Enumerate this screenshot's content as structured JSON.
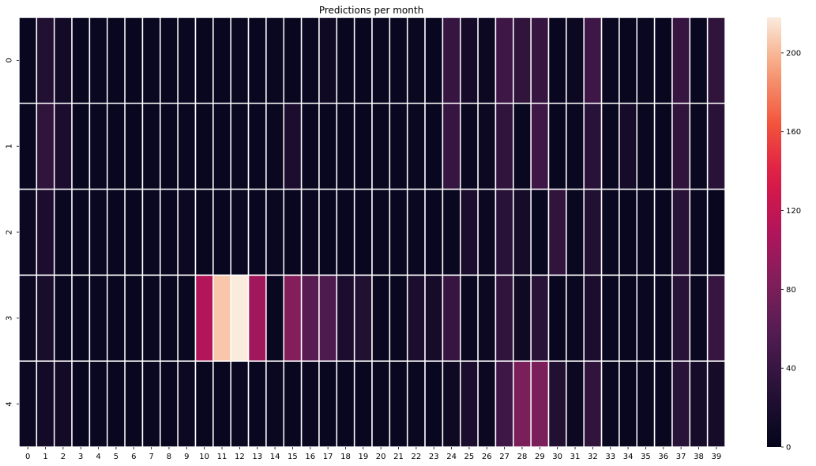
{
  "chart_data": {
    "type": "heatmap",
    "title": "Predictions per month",
    "xlabel": "",
    "ylabel": "",
    "x_ticks": [
      "0",
      "1",
      "2",
      "3",
      "4",
      "5",
      "6",
      "7",
      "8",
      "9",
      "10",
      "11",
      "12",
      "13",
      "14",
      "15",
      "16",
      "17",
      "18",
      "19",
      "20",
      "21",
      "22",
      "23",
      "24",
      "25",
      "26",
      "27",
      "28",
      "29",
      "30",
      "31",
      "32",
      "33",
      "34",
      "35",
      "36",
      "37",
      "38",
      "39"
    ],
    "y_ticks": [
      "0",
      "1",
      "2",
      "3",
      "4"
    ],
    "values": [
      [
        5,
        25,
        12,
        5,
        6,
        5,
        5,
        6,
        5,
        6,
        5,
        5,
        6,
        5,
        6,
        5,
        6,
        10,
        5,
        5,
        6,
        5,
        6,
        5,
        40,
        15,
        8,
        45,
        35,
        40,
        5,
        8,
        45,
        6,
        5,
        6,
        5,
        40,
        6,
        35
      ],
      [
        5,
        35,
        20,
        5,
        6,
        5,
        5,
        6,
        5,
        6,
        5,
        5,
        6,
        5,
        6,
        20,
        6,
        5,
        5,
        5,
        6,
        5,
        6,
        5,
        40,
        6,
        8,
        35,
        6,
        45,
        5,
        6,
        30,
        6,
        15,
        6,
        5,
        35,
        6,
        30
      ],
      [
        8,
        20,
        6,
        5,
        6,
        5,
        5,
        6,
        5,
        8,
        5,
        5,
        6,
        5,
        6,
        5,
        6,
        5,
        5,
        5,
        6,
        5,
        6,
        5,
        6,
        20,
        8,
        30,
        15,
        5,
        35,
        6,
        25,
        6,
        5,
        6,
        5,
        30,
        6,
        5
      ],
      [
        8,
        18,
        6,
        5,
        6,
        5,
        5,
        6,
        5,
        6,
        110,
        205,
        218,
        100,
        6,
        85,
        60,
        55,
        20,
        25,
        6,
        5,
        20,
        15,
        40,
        6,
        8,
        35,
        10,
        30,
        5,
        6,
        20,
        6,
        5,
        6,
        5,
        30,
        6,
        40
      ],
      [
        8,
        12,
        12,
        5,
        6,
        5,
        5,
        6,
        5,
        8,
        5,
        5,
        6,
        5,
        6,
        5,
        6,
        5,
        5,
        5,
        6,
        5,
        6,
        5,
        10,
        20,
        8,
        45,
        80,
        80,
        25,
        8,
        35,
        6,
        5,
        6,
        5,
        30,
        15,
        15
      ]
    ],
    "colorbar": {
      "min": 0,
      "max": 218,
      "ticks": [
        0,
        40,
        80,
        120,
        160,
        200
      ]
    },
    "colormap": "rocket",
    "grid_lines": true,
    "grid_color": "#ffffff"
  }
}
